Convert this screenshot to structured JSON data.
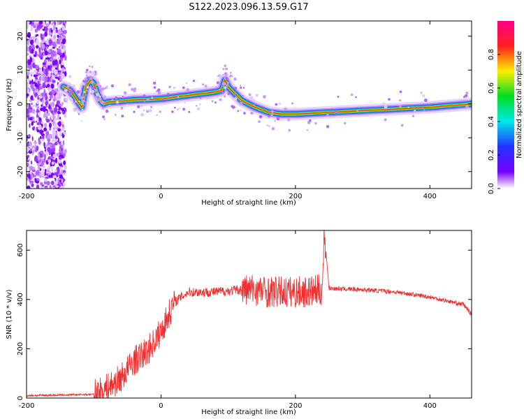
{
  "figure": {
    "title": "S122.2023.096.13.59.G17"
  },
  "colors": {
    "snr_line": "#f03030",
    "axis": "#000000",
    "background": "#ffffff"
  },
  "chart_data": [
    {
      "type": "heatmap",
      "title": "",
      "xlabel": "Height of straight line (km)",
      "ylabel": "Frequency (Hz)",
      "xlim": [
        -200,
        462
      ],
      "ylim": [
        -25,
        24.5
      ],
      "x_ticks": [
        -200,
        0,
        200,
        400
      ],
      "y_ticks": [
        -20,
        -10,
        0,
        10,
        20
      ],
      "colorbar": {
        "label": "Normalized spectral amplitude",
        "range": [
          0,
          1
        ],
        "ticks": [
          0.0,
          0.2,
          0.4,
          0.6,
          0.8
        ],
        "colormap": "rainbow-white-to-magenta"
      },
      "noise_region": {
        "x_from": -200,
        "x_to": -142,
        "y_from": -25,
        "y_to": 24.5
      },
      "ridge": {
        "x": [
          -145,
          -135,
          -125,
          -118,
          -112,
          -105,
          -100,
          -95,
          -90,
          -85,
          -80,
          -60,
          -40,
          -20,
          0,
          20,
          40,
          60,
          80,
          90,
          95,
          100,
          110,
          120,
          140,
          160,
          180,
          200,
          250,
          300,
          350,
          400,
          462
        ],
        "y": [
          5,
          4,
          1,
          -1,
          5,
          7,
          6,
          3,
          1,
          0,
          0.5,
          0.8,
          1.2,
          1.3,
          1.5,
          2,
          2.5,
          3,
          3.5,
          4,
          7,
          5,
          3,
          1,
          -1,
          -2.5,
          -3,
          -3,
          -2.5,
          -2,
          -1.5,
          -1,
          0
        ]
      }
    },
    {
      "type": "line",
      "title": "",
      "xlabel": "Height of straight line (km)",
      "ylabel": "SNR (10 * v/v)",
      "xlim": [
        -200,
        462
      ],
      "ylim": [
        0,
        680
      ],
      "x_ticks": [
        -200,
        0,
        200,
        400
      ],
      "y_ticks": [
        0,
        200,
        400,
        600
      ],
      "series": [
        {
          "color": "#f03030",
          "x": [
            -200,
            -150,
            -100,
            -80,
            -60,
            -40,
            -20,
            0,
            20,
            40,
            60,
            80,
            100,
            120,
            140,
            160,
            180,
            200,
            220,
            240,
            243,
            250,
            300,
            350,
            400,
            440,
            450,
            462
          ],
          "y": [
            10,
            12,
            15,
            40,
            80,
            150,
            190,
            270,
            390,
            430,
            430,
            430,
            435,
            440,
            440,
            430,
            430,
            430,
            430,
            440,
            670,
            445,
            440,
            430,
            410,
            385,
            380,
            340
          ]
        }
      ]
    }
  ]
}
